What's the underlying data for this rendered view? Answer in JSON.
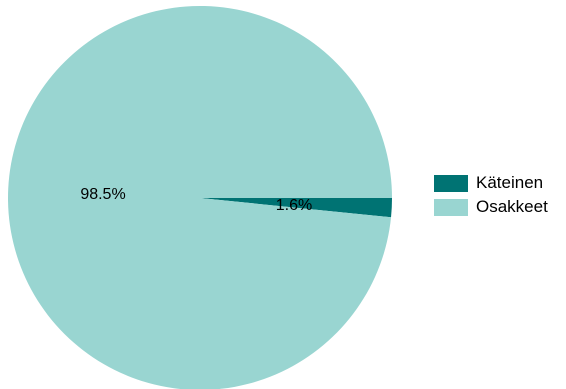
{
  "chart_data": {
    "type": "pie",
    "title": "",
    "slices": [
      {
        "label": "Käteinen",
        "value": 1.6,
        "display": "1.6%",
        "color": "#007373"
      },
      {
        "label": "Osakkeet",
        "value": 98.5,
        "display": "98.5%",
        "color": "#99d5d1"
      }
    ],
    "start_direction": "3 o'clock",
    "direction": "clockwise",
    "legend": {
      "position": "right"
    }
  }
}
